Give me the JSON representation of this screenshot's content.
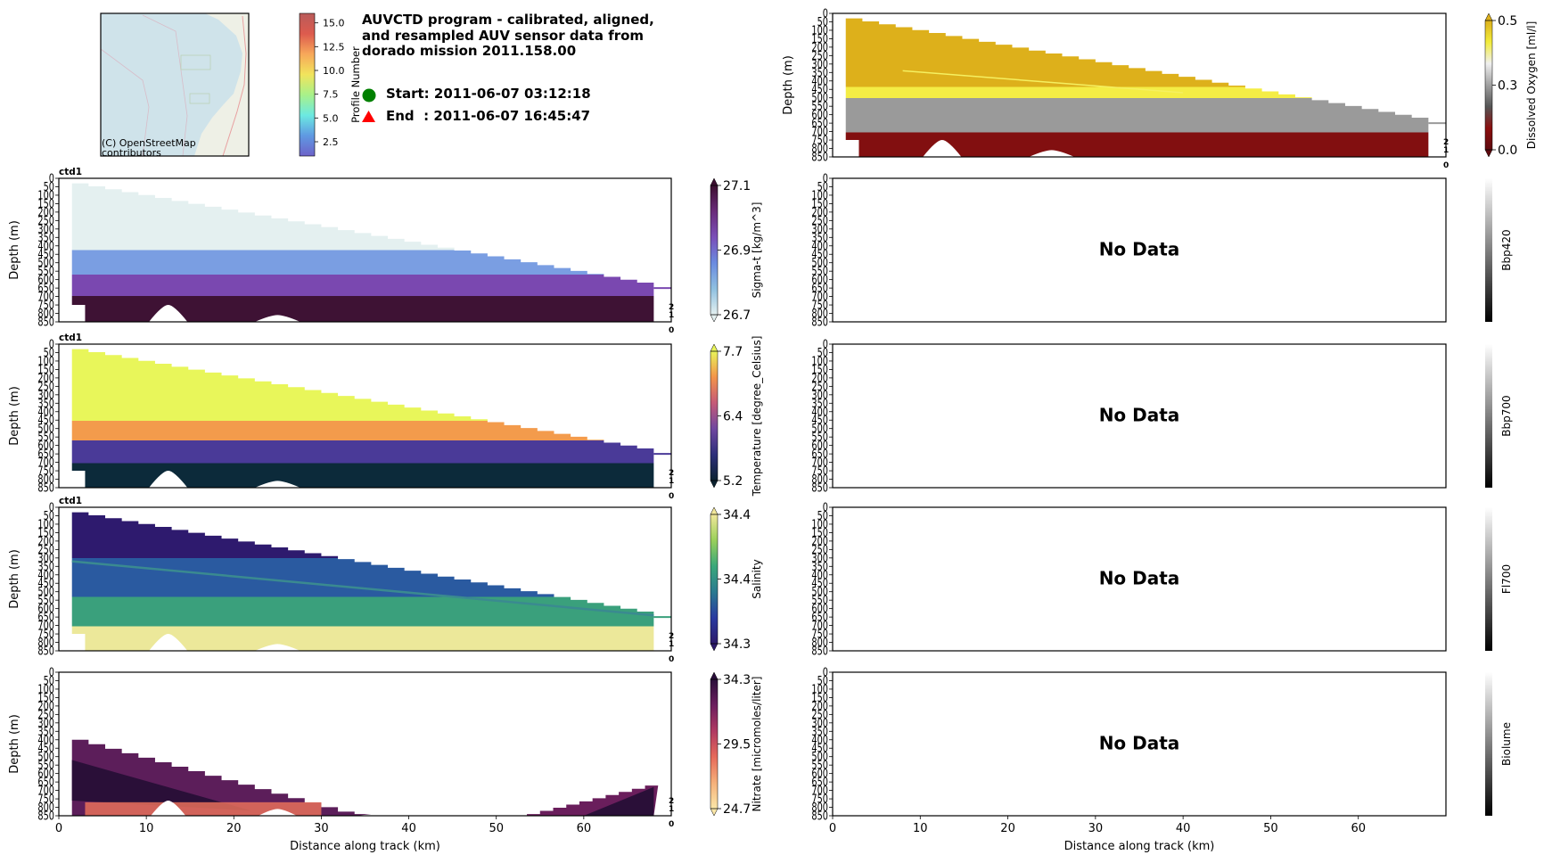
{
  "header": {
    "title_lines": [
      "AUVCTD program - calibrated, aligned,",
      "and resampled AUV sensor data from",
      "dorado mission 2011.158.00"
    ],
    "start_text": "Start: 2011-06-07 03:12:18",
    "end_text": "End  : 2011-06-07 16:45:47",
    "start_marker": "green-circle-icon",
    "end_marker": "red-triangle-icon",
    "start_color": "#008000",
    "end_color": "#ff0000"
  },
  "map": {
    "attribution_lines": [
      "(C) OpenStreetMap",
      "contributors"
    ],
    "water_color": "#cfe3ea",
    "land_color": "#eef0e6"
  },
  "profile_colorbar": {
    "label": "Profile Number",
    "ticks": [
      "2.5",
      "5.0",
      "7.5",
      "10.0",
      "12.5",
      "15.0"
    ],
    "tick_values": [
      2.5,
      5.0,
      7.5,
      10.0,
      12.5,
      15.0
    ],
    "range": [
      1,
      16
    ],
    "colors": [
      "#6d62c9",
      "#5f99e2",
      "#6ce9e1",
      "#a8f18a",
      "#f1e45c",
      "#f7a85a",
      "#dd5b4e",
      "#b95b5a"
    ]
  },
  "chart_data": [
    {
      "type": "heatmap",
      "id": "oxygen",
      "subtitle": "",
      "ylabel": "Depth (m)",
      "xlabel": "",
      "ylim": [
        850,
        0
      ],
      "xlim": [
        0,
        70
      ],
      "yticks": [
        "0",
        "50",
        "100",
        "150",
        "200",
        "250",
        "300",
        "350",
        "400",
        "450",
        "500",
        "550",
        "600",
        "650",
        "700",
        "750",
        "800",
        "850"
      ],
      "xticks": [],
      "profile_ticks": [
        "2",
        "1",
        "0"
      ],
      "has_data": true,
      "cbar_label": "Dissolved Oxygen [ml/l]",
      "cbar_ticks": [
        "0.0",
        "0.3",
        "0.5"
      ],
      "cbar_range": [
        0.0,
        0.5
      ],
      "cbar_extend": "both",
      "cbar_colors": [
        "#5e0a0f",
        "#8b0e0e",
        "#555555",
        "#a0a0a0",
        "#f0f0f0",
        "#f2ec3a",
        "#dcb01c"
      ],
      "layers": [
        {
          "name": "upper",
          "from": 0,
          "to": 420,
          "color": "#ddb01b"
        },
        {
          "name": "oxycline",
          "from": 420,
          "to": 490,
          "color": "#f4ed45"
        },
        {
          "name": "mid",
          "from": 490,
          "to": 700,
          "color": "#9a9a9a"
        },
        {
          "name": "deep",
          "from": 700,
          "to": 850,
          "color": "#820f10"
        }
      ]
    },
    {
      "type": "heatmap",
      "id": "sigma_t",
      "subtitle": "ctd1",
      "ylabel": "Depth (m)",
      "xlabel": "",
      "ylim": [
        850,
        0
      ],
      "xlim": [
        0,
        70
      ],
      "yticks": [
        "0",
        "50",
        "100",
        "150",
        "200",
        "250",
        "300",
        "350",
        "400",
        "450",
        "500",
        "550",
        "600",
        "650",
        "700",
        "750",
        "800",
        "850"
      ],
      "xticks": [],
      "profile_ticks": [
        "2",
        "1",
        "0"
      ],
      "has_data": true,
      "cbar_label": "Sigma-t [kg/m^3]",
      "cbar_ticks": [
        "26.7",
        "26.9",
        "27.1"
      ],
      "cbar_range": [
        26.7,
        27.1
      ],
      "cbar_extend": "both",
      "cbar_colors": [
        "#e4f0f0",
        "#8fc0e0",
        "#6a8be0",
        "#7a4fb8",
        "#6a2c7a",
        "#3c0f30"
      ],
      "layers": [
        {
          "name": "upper",
          "from": 0,
          "to": 410,
          "color": "#e4f0f0"
        },
        {
          "name": "pycnocline",
          "from": 410,
          "to": 560,
          "color": "#7a9ee2"
        },
        {
          "name": "mid",
          "from": 560,
          "to": 690,
          "color": "#7a48b0"
        },
        {
          "name": "deep",
          "from": 690,
          "to": 850,
          "color": "#3e1234"
        }
      ]
    },
    {
      "type": "heatmap",
      "id": "temperature",
      "subtitle": "ctd1",
      "ylabel": "Depth (m)",
      "xlabel": "",
      "ylim": [
        850,
        0
      ],
      "xlim": [
        0,
        70
      ],
      "yticks": [
        "0",
        "50",
        "100",
        "150",
        "200",
        "250",
        "300",
        "350",
        "400",
        "450",
        "500",
        "550",
        "600",
        "650",
        "700",
        "750",
        "800",
        "850"
      ],
      "xticks": [],
      "profile_ticks": [
        "2",
        "1",
        "0"
      ],
      "has_data": true,
      "cbar_label": "Temperature [degree_Celsius]",
      "cbar_ticks": [
        "5.2",
        "6.4",
        "7.7"
      ],
      "cbar_range": [
        5.2,
        7.7
      ],
      "cbar_extend": "both",
      "cbar_colors": [
        "#0b2230",
        "#2d2f7a",
        "#7048a0",
        "#c55a78",
        "#f3944a",
        "#e8f45a"
      ],
      "layers": [
        {
          "name": "upper",
          "from": 0,
          "to": 440,
          "color": "#e8f65a"
        },
        {
          "name": "thermocline",
          "from": 440,
          "to": 560,
          "color": "#f39b4c"
        },
        {
          "name": "mid",
          "from": 560,
          "to": 700,
          "color": "#4a3a98"
        },
        {
          "name": "deep",
          "from": 700,
          "to": 850,
          "color": "#0c2a3a"
        }
      ]
    },
    {
      "type": "heatmap",
      "id": "salinity",
      "subtitle": "ctd1",
      "ylabel": "Depth (m)",
      "xlabel": "",
      "ylim": [
        850,
        0
      ],
      "xlim": [
        0,
        70
      ],
      "yticks": [
        "0",
        "50",
        "100",
        "150",
        "200",
        "250",
        "300",
        "350",
        "400",
        "450",
        "500",
        "550",
        "600",
        "650",
        "700",
        "750",
        "800",
        "850"
      ],
      "xticks": [],
      "profile_ticks": [
        "2",
        "1",
        "0"
      ],
      "has_data": true,
      "cbar_label": "Salinity",
      "cbar_ticks": [
        "34.3",
        "34.4",
        "34.4"
      ],
      "cbar_range": [
        34.3,
        34.4
      ],
      "cbar_extend": "both",
      "cbar_colors": [
        "#2c1a6a",
        "#2a3aa0",
        "#2a7a90",
        "#3aa87a",
        "#9ad05a",
        "#f2e79a"
      ],
      "layers": [
        {
          "name": "upper",
          "from": 0,
          "to": 280,
          "color": "#2e1a6e"
        },
        {
          "name": "halocline",
          "from": 280,
          "to": 520,
          "color": "#2a5aa0"
        },
        {
          "name": "mid",
          "from": 520,
          "to": 700,
          "color": "#3aa07c"
        },
        {
          "name": "deep",
          "from": 700,
          "to": 850,
          "color": "#ece89a"
        }
      ]
    },
    {
      "type": "heatmap",
      "id": "nitrate",
      "subtitle": "",
      "ylabel": "Depth (m)",
      "xlabel": "Distance along track (km)",
      "ylim": [
        850,
        0
      ],
      "xlim": [
        0,
        70
      ],
      "yticks": [
        "0",
        "50",
        "100",
        "150",
        "200",
        "250",
        "300",
        "350",
        "400",
        "450",
        "500",
        "550",
        "600",
        "650",
        "700",
        "750",
        "800",
        "850"
      ],
      "xticks": [
        "0",
        "10",
        "20",
        "30",
        "40",
        "50",
        "60"
      ],
      "xtick_values": [
        0,
        10,
        20,
        30,
        40,
        50,
        60
      ],
      "profile_ticks": [
        "2",
        "1",
        "0"
      ],
      "has_data": true,
      "cbar_label": "Nitrate [micromoles/liter]",
      "cbar_ticks": [
        "24.7",
        "29.5",
        "34.3"
      ],
      "cbar_range": [
        24.7,
        34.3
      ],
      "cbar_extend": "both",
      "cbar_colors": [
        "#fbe7a8",
        "#f5b07a",
        "#e66a5a",
        "#b03a62",
        "#6c1f5e",
        "#2a0f3a"
      ],
      "layers": [
        {
          "name": "deep",
          "from": 400,
          "to": 850,
          "color": "#3a1446"
        }
      ]
    },
    {
      "type": "heatmap",
      "id": "bbp420",
      "subtitle": "",
      "ylabel": "",
      "xlabel": "",
      "ylim": [
        850,
        0
      ],
      "xlim": [
        0,
        70
      ],
      "yticks": [
        "0",
        "50",
        "100",
        "150",
        "200",
        "250",
        "300",
        "350",
        "400",
        "450",
        "500",
        "550",
        "600",
        "650",
        "700",
        "750",
        "800",
        "850"
      ],
      "xticks": [],
      "has_data": false,
      "no_data_text": "No Data",
      "cbar_label": "Bbp420",
      "cbar_ticks": [],
      "cbar_extend": "neither",
      "cbar_colors": [
        "#000000",
        "#ffffff"
      ]
    },
    {
      "type": "heatmap",
      "id": "bbp700",
      "subtitle": "",
      "ylabel": "",
      "xlabel": "",
      "ylim": [
        850,
        0
      ],
      "xlim": [
        0,
        70
      ],
      "yticks": [
        "0",
        "50",
        "100",
        "150",
        "200",
        "250",
        "300",
        "350",
        "400",
        "450",
        "500",
        "550",
        "600",
        "650",
        "700",
        "750",
        "800",
        "850"
      ],
      "xticks": [],
      "has_data": false,
      "no_data_text": "No Data",
      "cbar_label": "Bbp700",
      "cbar_ticks": [],
      "cbar_extend": "neither",
      "cbar_colors": [
        "#000000",
        "#ffffff"
      ]
    },
    {
      "type": "heatmap",
      "id": "fl700",
      "subtitle": "",
      "ylabel": "",
      "xlabel": "",
      "ylim": [
        850,
        0
      ],
      "xlim": [
        0,
        70
      ],
      "yticks": [
        "0",
        "50",
        "100",
        "150",
        "200",
        "250",
        "300",
        "350",
        "400",
        "450",
        "500",
        "550",
        "600",
        "650",
        "700",
        "750",
        "800",
        "850"
      ],
      "xticks": [],
      "has_data": false,
      "no_data_text": "No Data",
      "cbar_label": "Fl700",
      "cbar_ticks": [],
      "cbar_extend": "neither",
      "cbar_colors": [
        "#000000",
        "#ffffff"
      ]
    },
    {
      "type": "heatmap",
      "id": "biolume",
      "subtitle": "",
      "ylabel": "",
      "xlabel": "Distance along track (km)",
      "ylim": [
        850,
        0
      ],
      "xlim": [
        0,
        70
      ],
      "yticks": [
        "0",
        "50",
        "100",
        "150",
        "200",
        "250",
        "300",
        "350",
        "400",
        "450",
        "500",
        "550",
        "600",
        "650",
        "700",
        "750",
        "800",
        "850"
      ],
      "xticks": [
        "0",
        "10",
        "20",
        "30",
        "40",
        "50",
        "60"
      ],
      "xtick_values": [
        0,
        10,
        20,
        30,
        40,
        50,
        60
      ],
      "has_data": false,
      "no_data_text": "No Data",
      "cbar_label": "Biolume",
      "cbar_ticks": [],
      "cbar_extend": "neither",
      "cbar_colors": [
        "#000000",
        "#ffffff"
      ]
    }
  ]
}
